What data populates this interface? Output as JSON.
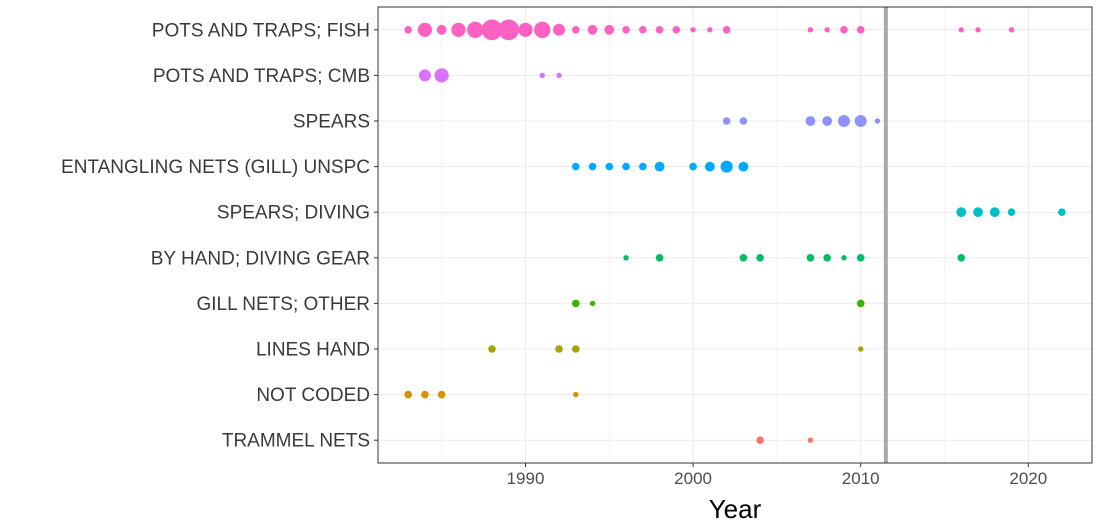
{
  "chart_data": {
    "type": "scatter",
    "title": "",
    "xlabel": "Year",
    "ylabel": "",
    "xlim": [
      1981.2,
      2023.8
    ],
    "x_ticks": [
      1990,
      2000,
      2010,
      2020
    ],
    "x_tick_labels": [
      "1990",
      "2000",
      "2010",
      "2020"
    ],
    "grid": true,
    "legend": "none",
    "reference_line": {
      "x": 2011.5,
      "color": "#a9a9a9"
    },
    "categories": [
      "POTS AND TRAPS; FISH",
      "POTS AND TRAPS; CMB",
      "SPEARS",
      "ENTANGLING NETS (GILL) UNSPC",
      "SPEARS; DIVING",
      "BY HAND; DIVING GEAR",
      "GILL NETS; OTHER",
      "LINES HAND",
      "NOT CODED",
      "TRAMMEL NETS"
    ],
    "series": [
      {
        "category": "POTS AND TRAPS; FISH",
        "color": "#ff61c3",
        "points": [
          {
            "x": 1983,
            "size": 2
          },
          {
            "x": 1984,
            "size": 5
          },
          {
            "x": 1985,
            "size": 3
          },
          {
            "x": 1986,
            "size": 5
          },
          {
            "x": 1987,
            "size": 6
          },
          {
            "x": 1988,
            "size": 8
          },
          {
            "x": 1989,
            "size": 8
          },
          {
            "x": 1990,
            "size": 5
          },
          {
            "x": 1991,
            "size": 6
          },
          {
            "x": 1992,
            "size": 4
          },
          {
            "x": 1993,
            "size": 2
          },
          {
            "x": 1994,
            "size": 3
          },
          {
            "x": 1995,
            "size": 3
          },
          {
            "x": 1996,
            "size": 2
          },
          {
            "x": 1997,
            "size": 2
          },
          {
            "x": 1998,
            "size": 2
          },
          {
            "x": 1999,
            "size": 2
          },
          {
            "x": 2000,
            "size": 1
          },
          {
            "x": 2001,
            "size": 1
          },
          {
            "x": 2002,
            "size": 2
          },
          {
            "x": 2007,
            "size": 1
          },
          {
            "x": 2008,
            "size": 1
          },
          {
            "x": 2009,
            "size": 2
          },
          {
            "x": 2010,
            "size": 2
          },
          {
            "x": 2016,
            "size": 1
          },
          {
            "x": 2017,
            "size": 1
          },
          {
            "x": 2019,
            "size": 1
          }
        ]
      },
      {
        "category": "POTS AND TRAPS; CMB",
        "color": "#db72fb",
        "points": [
          {
            "x": 1984,
            "size": 4
          },
          {
            "x": 1985,
            "size": 5
          },
          {
            "x": 1991,
            "size": 1
          },
          {
            "x": 1992,
            "size": 1
          }
        ]
      },
      {
        "category": "SPEARS",
        "color": "#8f91ff",
        "points": [
          {
            "x": 2002,
            "size": 2
          },
          {
            "x": 2003,
            "size": 2
          },
          {
            "x": 2007,
            "size": 3
          },
          {
            "x": 2008,
            "size": 3
          },
          {
            "x": 2009,
            "size": 4
          },
          {
            "x": 2010,
            "size": 4
          },
          {
            "x": 2011,
            "size": 1
          }
        ]
      },
      {
        "category": "ENTANGLING NETS (GILL) UNSPC",
        "color": "#00a9ff",
        "points": [
          {
            "x": 1993,
            "size": 2
          },
          {
            "x": 1994,
            "size": 2
          },
          {
            "x": 1995,
            "size": 2
          },
          {
            "x": 1996,
            "size": 2
          },
          {
            "x": 1997,
            "size": 2
          },
          {
            "x": 1998,
            "size": 3
          },
          {
            "x": 2000,
            "size": 2
          },
          {
            "x": 2001,
            "size": 3
          },
          {
            "x": 2002,
            "size": 4
          },
          {
            "x": 2003,
            "size": 3
          }
        ]
      },
      {
        "category": "SPEARS; DIVING",
        "color": "#00bfc4",
        "points": [
          {
            "x": 2016,
            "size": 3
          },
          {
            "x": 2017,
            "size": 3
          },
          {
            "x": 2018,
            "size": 3
          },
          {
            "x": 2019,
            "size": 2
          },
          {
            "x": 2022,
            "size": 2
          }
        ]
      },
      {
        "category": "BY HAND; DIVING GEAR",
        "color": "#00be67",
        "points": [
          {
            "x": 1996,
            "size": 1
          },
          {
            "x": 1998,
            "size": 2
          },
          {
            "x": 2003,
            "size": 2
          },
          {
            "x": 2004,
            "size": 2
          },
          {
            "x": 2007,
            "size": 2
          },
          {
            "x": 2008,
            "size": 2
          },
          {
            "x": 2009,
            "size": 1
          },
          {
            "x": 2010,
            "size": 2
          },
          {
            "x": 2016,
            "size": 2
          }
        ]
      },
      {
        "category": "GILL NETS; OTHER",
        "color": "#39b600",
        "points": [
          {
            "x": 1993,
            "size": 2
          },
          {
            "x": 1994,
            "size": 1
          },
          {
            "x": 2010,
            "size": 2
          }
        ]
      },
      {
        "category": "LINES HAND",
        "color": "#a3a500",
        "points": [
          {
            "x": 1988,
            "size": 2
          },
          {
            "x": 1992,
            "size": 2
          },
          {
            "x": 1993,
            "size": 2
          },
          {
            "x": 2010,
            "size": 1
          }
        ]
      },
      {
        "category": "NOT CODED",
        "color": "#d89000",
        "points": [
          {
            "x": 1983,
            "size": 2
          },
          {
            "x": 1984,
            "size": 2
          },
          {
            "x": 1985,
            "size": 2
          },
          {
            "x": 1993,
            "size": 1
          }
        ]
      },
      {
        "category": "TRAMMEL NETS",
        "color": "#f8766d",
        "points": [
          {
            "x": 2004,
            "size": 2
          },
          {
            "x": 2007,
            "size": 1
          }
        ]
      }
    ]
  }
}
